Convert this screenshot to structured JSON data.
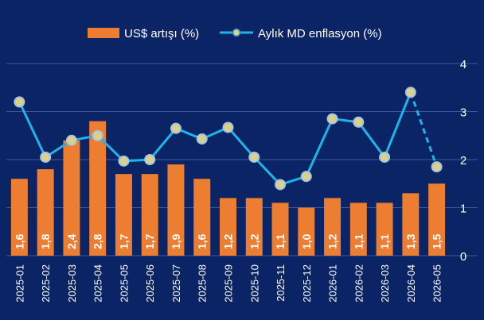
{
  "chart_data": {
    "type": "bar",
    "categories": [
      "2025-01",
      "2025-02",
      "2025-03",
      "2025-04",
      "2025-05",
      "2025-06",
      "2025-07",
      "2025-08",
      "2025-09",
      "2025-10",
      "2025-11",
      "2025-12",
      "2026-01",
      "2026-02",
      "2026-03",
      "2026-04",
      "2026-05"
    ],
    "series": [
      {
        "name": "US$ artışı (%)",
        "type": "bar",
        "values": [
          1.6,
          1.8,
          2.4,
          2.8,
          1.7,
          1.7,
          1.9,
          1.6,
          1.2,
          1.2,
          1.1,
          1.0,
          1.2,
          1.1,
          1.1,
          1.3,
          1.5
        ],
        "data_labels": [
          "1,6",
          "1,8",
          "2,4",
          "2,8",
          "1,7",
          "1,7",
          "1,9",
          "1,6",
          "1,2",
          "1,2",
          "1,1",
          "1,0",
          "1,2",
          "1,1",
          "1,1",
          "1,3",
          "1,5"
        ],
        "color": "#ed7d31"
      },
      {
        "name": "Aylık MD enflasyon (%)",
        "type": "line",
        "values": [
          3.2,
          2.05,
          2.4,
          2.5,
          1.97,
          2.0,
          2.65,
          2.43,
          2.67,
          2.05,
          1.48,
          1.65,
          2.85,
          2.78,
          2.05,
          3.4,
          1.85
        ],
        "color": "#1fb4e8",
        "marker_color": "#d9d28a",
        "dashed_last_segment": true
      }
    ],
    "yaxis": {
      "ticks": [
        "0",
        "1",
        "2",
        "3",
        "4"
      ],
      "ylim": [
        0,
        4
      ],
      "position": "right"
    },
    "grid": true,
    "legend": "top"
  }
}
